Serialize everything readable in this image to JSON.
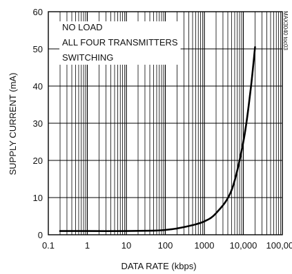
{
  "chart_data": {
    "type": "line",
    "title": "",
    "xlabel": "DATA RATE (kbps)",
    "ylabel": "SUPPLY CURRENT (mA)",
    "x_scale": "log",
    "xlim": [
      0.1,
      100000
    ],
    "ylim": [
      0,
      60
    ],
    "x_tick_labels": [
      "0.1",
      "1",
      "10",
      "100",
      "1000",
      "10,000",
      "100,000"
    ],
    "x_tick_values": [
      0.1,
      1,
      10,
      100,
      1000,
      10000,
      100000
    ],
    "y_ticks": [
      0,
      10,
      20,
      30,
      40,
      50,
      60
    ],
    "grid": true,
    "annotations": [
      "NO LOAD",
      "ALL FOUR TRANSMITTERS",
      "SWITCHING"
    ],
    "figure_id": "MAX3040 toc03",
    "series": [
      {
        "x": [
          0.2,
          1,
          10,
          50,
          100,
          200,
          500,
          1000,
          2000,
          5000,
          10000,
          15000,
          20000
        ],
        "values": [
          1.0,
          1.0,
          1.0,
          1.1,
          1.3,
          1.7,
          2.6,
          3.6,
          5.8,
          12.0,
          25.0,
          38.0,
          50.5
        ]
      }
    ]
  }
}
